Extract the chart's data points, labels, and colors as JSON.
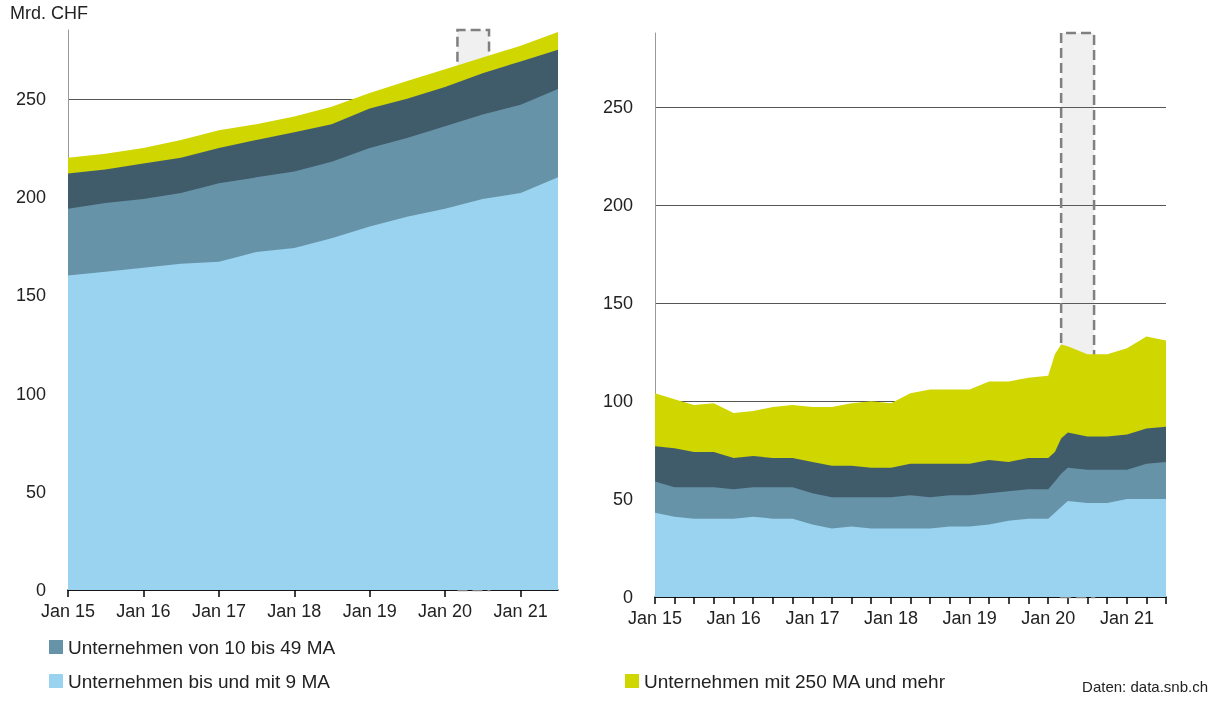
{
  "chart_data": [
    {
      "type": "area",
      "ylabel": "Mrd. CHF",
      "stacked": true,
      "grid": "y",
      "legend": "bottom",
      "x": [
        "2015-01",
        "2015-07",
        "2016-01",
        "2016-07",
        "2017-01",
        "2017-07",
        "2018-01",
        "2018-07",
        "2019-01",
        "2019-07",
        "2020-01",
        "2020-07",
        "2021-01",
        "2021-07"
      ],
      "xlim": [
        "2015-01",
        "2021-07"
      ],
      "xticks": [
        {
          "value": "2015-01",
          "label": "Jan 15"
        },
        {
          "value": "2016-01",
          "label": "Jan 16"
        },
        {
          "value": "2017-01",
          "label": "Jan 17"
        },
        {
          "value": "2018-01",
          "label": "Jan 18"
        },
        {
          "value": "2019-01",
          "label": "Jan 19"
        },
        {
          "value": "2020-01",
          "label": "Jan 20"
        },
        {
          "value": "2021-01",
          "label": "Jan 21"
        }
      ],
      "ylim": [
        0,
        285
      ],
      "yticks": [
        0,
        50,
        100,
        150,
        200,
        250
      ],
      "bands": [
        {
          "axis": "x",
          "from": "2020-03",
          "to": "2020-08",
          "color": "#808080"
        }
      ],
      "series": [
        {
          "name": "Unternehmen bis und mit 9 MA",
          "color": "#9ad3f0",
          "values": [
            160,
            162,
            164,
            166,
            167,
            172,
            174,
            179,
            185,
            190,
            194,
            199,
            202,
            210
          ]
        },
        {
          "name": "Unternehmen von 10 bis 49 MA",
          "color": "#6793a8",
          "values": [
            34,
            35,
            35,
            36,
            40,
            38,
            39,
            39,
            40,
            40,
            42,
            43,
            45,
            45
          ]
        },
        {
          "color": "#405c6b",
          "values": [
            18,
            17,
            18,
            18,
            18,
            19,
            20,
            19,
            20,
            20,
            20,
            21,
            22,
            20
          ]
        },
        {
          "color": "#d0d600",
          "values": [
            8,
            8,
            8,
            9,
            9,
            8,
            8,
            9,
            8,
            9,
            9,
            8,
            8,
            9
          ]
        }
      ]
    },
    {
      "type": "area",
      "stacked": true,
      "grid": "y",
      "legend": "bottom",
      "x": [
        "2015-01",
        "2015-04",
        "2015-07",
        "2015-10",
        "2016-01",
        "2016-04",
        "2016-07",
        "2016-10",
        "2017-01",
        "2017-04",
        "2017-07",
        "2017-10",
        "2018-01",
        "2018-04",
        "2018-07",
        "2018-10",
        "2019-01",
        "2019-04",
        "2019-07",
        "2019-10",
        "2020-01",
        "2020-02",
        "2020-03",
        "2020-04",
        "2020-07",
        "2020-10",
        "2021-01",
        "2021-04",
        "2021-07"
      ],
      "xlim": [
        "2015-01",
        "2021-07"
      ],
      "xticks": [
        {
          "value": "2015-01",
          "label": "Jan 15"
        },
        {
          "value": "2015-04",
          "label": null
        },
        {
          "value": "2015-07",
          "label": null
        },
        {
          "value": "2015-10",
          "label": null
        },
        {
          "value": "2016-01",
          "label": "Jan 16"
        },
        {
          "value": "2016-04",
          "label": null
        },
        {
          "value": "2016-07",
          "label": null
        },
        {
          "value": "2016-10",
          "label": null
        },
        {
          "value": "2017-01",
          "label": "Jan 17"
        },
        {
          "value": "2017-04",
          "label": null
        },
        {
          "value": "2017-07",
          "label": null
        },
        {
          "value": "2017-10",
          "label": null
        },
        {
          "value": "2018-01",
          "label": "Jan 18"
        },
        {
          "value": "2018-04",
          "label": null
        },
        {
          "value": "2018-07",
          "label": null
        },
        {
          "value": "2018-10",
          "label": null
        },
        {
          "value": "2019-01",
          "label": "Jan 19"
        },
        {
          "value": "2019-04",
          "label": null
        },
        {
          "value": "2019-07",
          "label": null
        },
        {
          "value": "2019-10",
          "label": null
        },
        {
          "value": "2020-01",
          "label": "Jan 20"
        },
        {
          "value": "2020-04",
          "label": null
        },
        {
          "value": "2020-07",
          "label": null
        },
        {
          "value": "2020-10",
          "label": null
        },
        {
          "value": "2021-01",
          "label": "Jan 21"
        },
        {
          "value": "2021-04",
          "label": null
        },
        {
          "value": "2021-07",
          "label": null
        }
      ],
      "ylim": [
        0,
        288
      ],
      "yticks": [
        0,
        50,
        100,
        150,
        200,
        250
      ],
      "bands": [
        {
          "axis": "x",
          "from": "2020-03",
          "to": "2020-08",
          "color": "#808080"
        }
      ],
      "annotations": [
        "Daten: data.snb.ch"
      ],
      "series": [
        {
          "color": "#9ad3f0",
          "values": [
            43,
            41,
            40,
            40,
            40,
            41,
            40,
            40,
            37,
            35,
            36,
            35,
            35,
            35,
            35,
            36,
            36,
            37,
            39,
            40,
            40,
            43,
            46,
            49,
            48,
            48,
            50,
            50,
            50
          ]
        },
        {
          "color": "#6793a8",
          "values": [
            16,
            15,
            16,
            16,
            15,
            15,
            16,
            16,
            16,
            16,
            15,
            16,
            16,
            17,
            16,
            16,
            16,
            16,
            15,
            15,
            15,
            16,
            17,
            17,
            17,
            17,
            15,
            18,
            19
          ]
        },
        {
          "color": "#405c6b",
          "values": [
            18,
            20,
            18,
            18,
            16,
            16,
            15,
            15,
            16,
            16,
            16,
            15,
            15,
            16,
            17,
            16,
            16,
            17,
            15,
            16,
            16,
            15,
            18,
            18,
            17,
            17,
            18,
            18,
            18
          ]
        },
        {
          "name": "Unternehmen mit 250 MA und mehr",
          "color": "#d0d600",
          "values": [
            27,
            25,
            24,
            25,
            23,
            23,
            26,
            27,
            28,
            30,
            32,
            34,
            33,
            36,
            38,
            38,
            38,
            40,
            41,
            41,
            42,
            50,
            48,
            44,
            42,
            42,
            44,
            47,
            44
          ]
        }
      ]
    }
  ]
}
